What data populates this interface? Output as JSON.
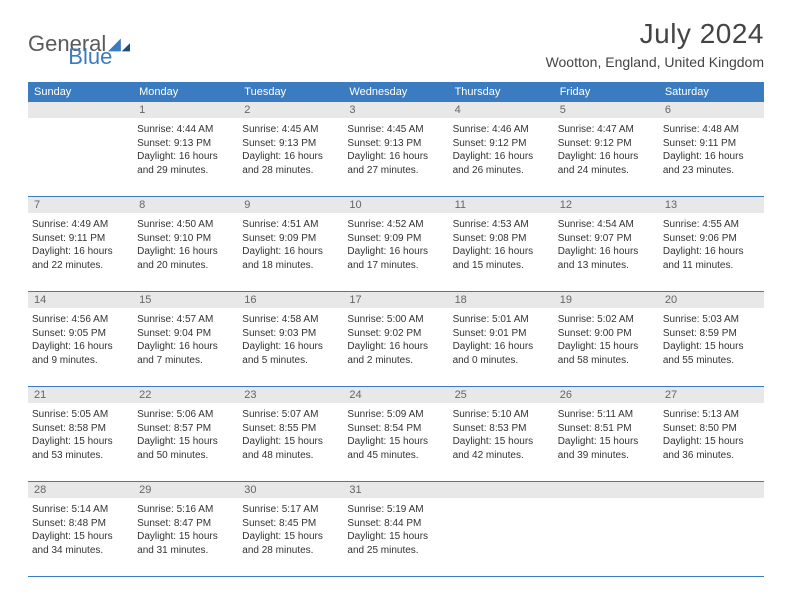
{
  "logo": {
    "text1": "General",
    "text2": "Blue"
  },
  "title": "July 2024",
  "location": "Wootton, England, United Kingdom",
  "colors": {
    "accent": "#3b7bbf",
    "header_bg": "#3b7bbf",
    "daynum_bg": "#e8e8e8",
    "text": "#333333",
    "title_text": "#444444"
  },
  "weekdays": [
    "Sunday",
    "Monday",
    "Tuesday",
    "Wednesday",
    "Thursday",
    "Friday",
    "Saturday"
  ],
  "weeks": [
    [
      null,
      {
        "n": "1",
        "sr": "4:44 AM",
        "ss": "9:13 PM",
        "dl": "16 hours and 29 minutes."
      },
      {
        "n": "2",
        "sr": "4:45 AM",
        "ss": "9:13 PM",
        "dl": "16 hours and 28 minutes."
      },
      {
        "n": "3",
        "sr": "4:45 AM",
        "ss": "9:13 PM",
        "dl": "16 hours and 27 minutes."
      },
      {
        "n": "4",
        "sr": "4:46 AM",
        "ss": "9:12 PM",
        "dl": "16 hours and 26 minutes."
      },
      {
        "n": "5",
        "sr": "4:47 AM",
        "ss": "9:12 PM",
        "dl": "16 hours and 24 minutes."
      },
      {
        "n": "6",
        "sr": "4:48 AM",
        "ss": "9:11 PM",
        "dl": "16 hours and 23 minutes."
      }
    ],
    [
      {
        "n": "7",
        "sr": "4:49 AM",
        "ss": "9:11 PM",
        "dl": "16 hours and 22 minutes."
      },
      {
        "n": "8",
        "sr": "4:50 AM",
        "ss": "9:10 PM",
        "dl": "16 hours and 20 minutes."
      },
      {
        "n": "9",
        "sr": "4:51 AM",
        "ss": "9:09 PM",
        "dl": "16 hours and 18 minutes."
      },
      {
        "n": "10",
        "sr": "4:52 AM",
        "ss": "9:09 PM",
        "dl": "16 hours and 17 minutes."
      },
      {
        "n": "11",
        "sr": "4:53 AM",
        "ss": "9:08 PM",
        "dl": "16 hours and 15 minutes."
      },
      {
        "n": "12",
        "sr": "4:54 AM",
        "ss": "9:07 PM",
        "dl": "16 hours and 13 minutes."
      },
      {
        "n": "13",
        "sr": "4:55 AM",
        "ss": "9:06 PM",
        "dl": "16 hours and 11 minutes."
      }
    ],
    [
      {
        "n": "14",
        "sr": "4:56 AM",
        "ss": "9:05 PM",
        "dl": "16 hours and 9 minutes."
      },
      {
        "n": "15",
        "sr": "4:57 AM",
        "ss": "9:04 PM",
        "dl": "16 hours and 7 minutes."
      },
      {
        "n": "16",
        "sr": "4:58 AM",
        "ss": "9:03 PM",
        "dl": "16 hours and 5 minutes."
      },
      {
        "n": "17",
        "sr": "5:00 AM",
        "ss": "9:02 PM",
        "dl": "16 hours and 2 minutes."
      },
      {
        "n": "18",
        "sr": "5:01 AM",
        "ss": "9:01 PM",
        "dl": "16 hours and 0 minutes."
      },
      {
        "n": "19",
        "sr": "5:02 AM",
        "ss": "9:00 PM",
        "dl": "15 hours and 58 minutes."
      },
      {
        "n": "20",
        "sr": "5:03 AM",
        "ss": "8:59 PM",
        "dl": "15 hours and 55 minutes."
      }
    ],
    [
      {
        "n": "21",
        "sr": "5:05 AM",
        "ss": "8:58 PM",
        "dl": "15 hours and 53 minutes."
      },
      {
        "n": "22",
        "sr": "5:06 AM",
        "ss": "8:57 PM",
        "dl": "15 hours and 50 minutes."
      },
      {
        "n": "23",
        "sr": "5:07 AM",
        "ss": "8:55 PM",
        "dl": "15 hours and 48 minutes."
      },
      {
        "n": "24",
        "sr": "5:09 AM",
        "ss": "8:54 PM",
        "dl": "15 hours and 45 minutes."
      },
      {
        "n": "25",
        "sr": "5:10 AM",
        "ss": "8:53 PM",
        "dl": "15 hours and 42 minutes."
      },
      {
        "n": "26",
        "sr": "5:11 AM",
        "ss": "8:51 PM",
        "dl": "15 hours and 39 minutes."
      },
      {
        "n": "27",
        "sr": "5:13 AM",
        "ss": "8:50 PM",
        "dl": "15 hours and 36 minutes."
      }
    ],
    [
      {
        "n": "28",
        "sr": "5:14 AM",
        "ss": "8:48 PM",
        "dl": "15 hours and 34 minutes."
      },
      {
        "n": "29",
        "sr": "5:16 AM",
        "ss": "8:47 PM",
        "dl": "15 hours and 31 minutes."
      },
      {
        "n": "30",
        "sr": "5:17 AM",
        "ss": "8:45 PM",
        "dl": "15 hours and 28 minutes."
      },
      {
        "n": "31",
        "sr": "5:19 AM",
        "ss": "8:44 PM",
        "dl": "15 hours and 25 minutes."
      },
      null,
      null,
      null
    ]
  ],
  "labels": {
    "sunrise": "Sunrise:",
    "sunset": "Sunset:",
    "daylight": "Daylight:"
  }
}
